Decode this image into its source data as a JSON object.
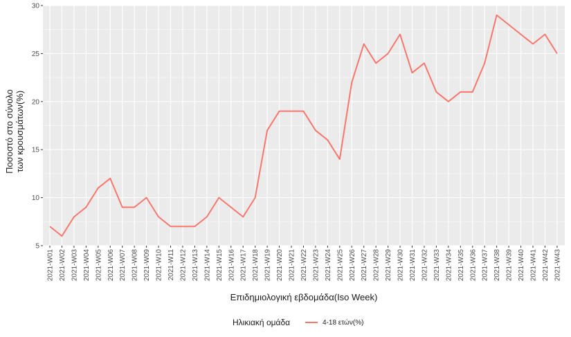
{
  "chart_data": {
    "type": "line",
    "xlabel": "Επιδημιολογική εβδομάδα(Iso Week)",
    "ylabel_lines": [
      "Ποσοστό στο σύνολο",
      "των κρουσμάτων(%)"
    ],
    "ylim": [
      5,
      30
    ],
    "yticks": [
      5,
      10,
      15,
      20,
      25,
      30
    ],
    "grid": true,
    "legend_position": "bottom",
    "legend_title": "Ηλικιακή ομάδα",
    "categories": [
      "2021-W01",
      "2021-W02",
      "2021-W03",
      "2021-W04",
      "2021-W05",
      "2021-W06",
      "2021-W07",
      "2021-W08",
      "2021-W09",
      "2021-W10",
      "2021-W11",
      "2021-W12",
      "2021-W13",
      "2021-W14",
      "2021-W15",
      "2021-W16",
      "2021-W17",
      "2021-W18",
      "2021-W19",
      "2021-W20",
      "2021-W21",
      "2021-W22",
      "2021-W23",
      "2021-W24",
      "2021-W25",
      "2021-W26",
      "2021-W27",
      "2021-W28",
      "2021-W29",
      "2021-W30",
      "2021-W31",
      "2021-W32",
      "2021-W33",
      "2021-W34",
      "2021-W35",
      "2021-W36",
      "2021-W37",
      "2021-W38",
      "2021-W39",
      "2021-W40",
      "2021-W41",
      "2021-W42",
      "2021-W43"
    ],
    "series": [
      {
        "name": "4-18 ετών(%)",
        "color": "#F8766D",
        "values": [
          7,
          6,
          8,
          9,
          11,
          12,
          9,
          9,
          10,
          8,
          7,
          7,
          7,
          8,
          10,
          9,
          8,
          10,
          17,
          19,
          19,
          19,
          17,
          16,
          14,
          22,
          26,
          24,
          25,
          27,
          23,
          24,
          21,
          20,
          21,
          21,
          24,
          29,
          28,
          27,
          26,
          27,
          25
        ]
      }
    ]
  }
}
